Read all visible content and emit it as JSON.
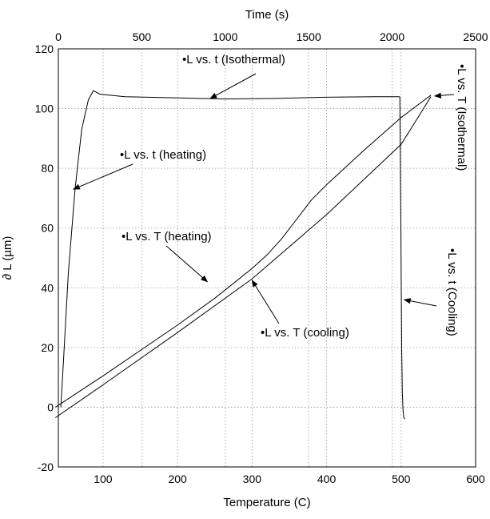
{
  "chart_data": {
    "type": "line",
    "top_axis": {
      "label": "Time (s)",
      "range": [
        0,
        2500
      ],
      "ticks": [
        "0",
        "500",
        "1000",
        "1500",
        "2000",
        "2500"
      ]
    },
    "bottom_axis": {
      "label": "Temperature (C)",
      "range": [
        40,
        600
      ],
      "ticks": [
        "100",
        "200",
        "300",
        "400",
        "500",
        "600"
      ]
    },
    "y_axis": {
      "label": "∂ L (µm)",
      "range": [
        -20,
        120
      ],
      "ticks": [
        "-20",
        "0",
        "20",
        "40",
        "60",
        "80",
        "100",
        "120"
      ]
    },
    "grid": true,
    "series": [
      {
        "axis": "top",
        "points": [
          [
            15,
            0
          ],
          [
            30,
            15
          ],
          [
            60,
            45
          ],
          [
            100,
            73
          ],
          [
            140,
            93
          ],
          [
            180,
            103
          ],
          [
            210,
            106
          ],
          [
            250,
            104.8
          ],
          [
            400,
            104
          ],
          [
            700,
            103.6
          ],
          [
            1000,
            103.2
          ],
          [
            1300,
            103.4
          ],
          [
            1600,
            103.8
          ],
          [
            1900,
            104
          ],
          [
            2046,
            104
          ]
        ]
      },
      {
        "axis": "top",
        "points": [
          [
            2046,
            104
          ],
          [
            2052,
            60
          ],
          [
            2057,
            20
          ],
          [
            2061,
            5
          ],
          [
            2065,
            -1
          ],
          [
            2070,
            -3.5
          ],
          [
            2075,
            -4
          ]
        ]
      },
      {
        "axis": "bottom",
        "points": [
          [
            36,
            0
          ],
          [
            100,
            10.5
          ],
          [
            200,
            27.5
          ],
          [
            250,
            36.5
          ],
          [
            300,
            46.5
          ],
          [
            320,
            51
          ],
          [
            340,
            56.5
          ],
          [
            360,
            63
          ],
          [
            380,
            69.5
          ],
          [
            400,
            74.5
          ],
          [
            450,
            86
          ],
          [
            500,
            97
          ],
          [
            540,
            104.5
          ]
        ]
      },
      {
        "axis": "bottom",
        "points": [
          [
            36,
            -3.5
          ],
          [
            100,
            7.5
          ],
          [
            200,
            25
          ],
          [
            300,
            43
          ],
          [
            400,
            64.5
          ],
          [
            500,
            88
          ],
          [
            540,
            104
          ]
        ]
      }
    ],
    "annotations": [
      {
        "text": "•L vs. t (Isothermal)",
        "target_axis": "top",
        "target": [
          910,
          103.4
        ]
      },
      {
        "text": "•L vs. t (heating)",
        "target_axis": "top",
        "target": [
          90,
          73
        ]
      },
      {
        "text": "•L vs. T (heating)",
        "target_axis": "bottom",
        "target": [
          240,
          42
        ]
      },
      {
        "text": "•L vs. T (cooling)",
        "target_axis": "bottom",
        "target": [
          300,
          42.5
        ]
      },
      {
        "text": "•L vs. T (Isothermal)",
        "target_axis": "bottom",
        "target": [
          545,
          104.2
        ]
      },
      {
        "text": "•L vs. t (Cooling)",
        "target_axis": "top",
        "target": [
          2072,
          36
        ]
      }
    ]
  }
}
